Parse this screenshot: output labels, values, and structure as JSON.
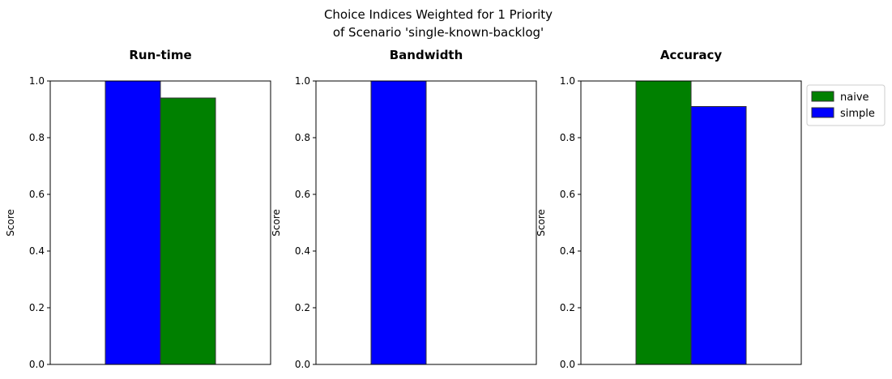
{
  "figure": {
    "title_lines": [
      "Choice Indices Weighted for 1 Priority",
      "of Scenario 'single-known-backlog'"
    ]
  },
  "colors": {
    "naive": "#008000",
    "simple": "#0000ff",
    "bar_edge": "#333333"
  },
  "legend": {
    "placement": "outside upper right",
    "entries": [
      {
        "label": "naive",
        "color": "#008000"
      },
      {
        "label": "simple",
        "color": "#0000ff"
      }
    ]
  },
  "chart_data": [
    {
      "type": "bar",
      "title": "Run-time",
      "ylabel": "Score",
      "ylim": [
        0,
        1
      ],
      "yticks": [
        "0.0",
        "0.2",
        "0.4",
        "0.6",
        "0.8",
        "1.0"
      ],
      "series": [
        {
          "name": "simple",
          "value": 1.0
        },
        {
          "name": "naive",
          "value": 0.94
        }
      ]
    },
    {
      "type": "bar",
      "title": "Bandwidth",
      "ylabel": "Score",
      "ylim": [
        0,
        1
      ],
      "yticks": [
        "0.0",
        "0.2",
        "0.4",
        "0.6",
        "0.8",
        "1.0"
      ],
      "series": [
        {
          "name": "simple",
          "value": 1.0
        },
        {
          "name": "naive",
          "value": 0.0
        }
      ]
    },
    {
      "type": "bar",
      "title": "Accuracy",
      "ylabel": "Score",
      "ylim": [
        0,
        1
      ],
      "yticks": [
        "0.0",
        "0.2",
        "0.4",
        "0.6",
        "0.8",
        "1.0"
      ],
      "series": [
        {
          "name": "naive",
          "value": 1.0
        },
        {
          "name": "simple",
          "value": 0.91
        }
      ]
    }
  ]
}
